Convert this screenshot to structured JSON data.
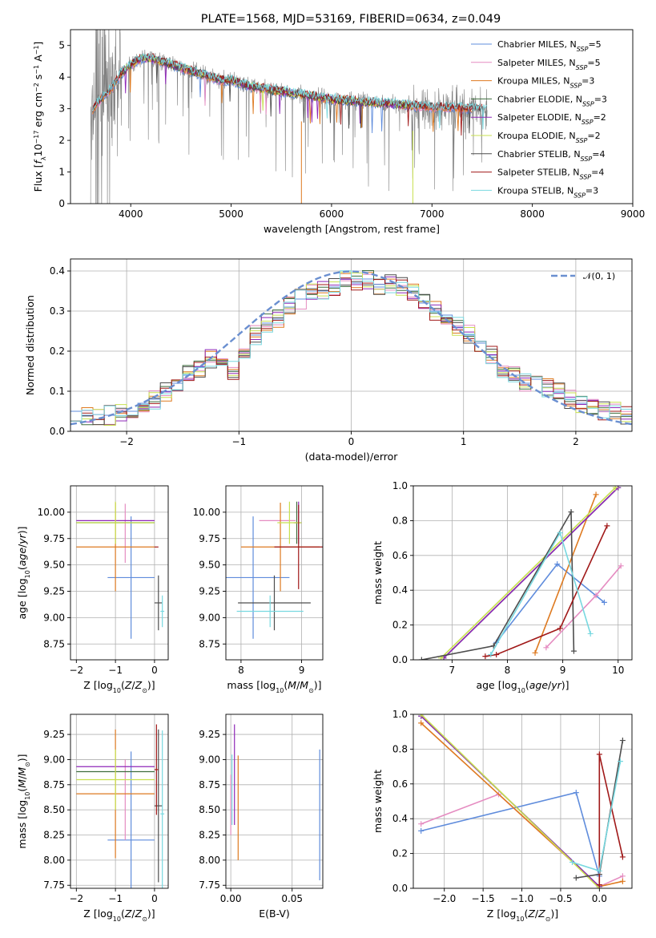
{
  "title": "PLATE=1568, MJD=53169, FIBERID=0634, z=0.049",
  "colors": {
    "Chabrier MILES": "#5f8cdc",
    "Salpeter MILES": "#e58cc1",
    "Kroupa MILES": "#de7a20",
    "Chabrier ELODIE": "#3f6e3f",
    "Salpeter ELODIE": "#8f28b8",
    "Kroupa ELODIE": "#c8e050",
    "Chabrier STELIB": "#4d4d4d",
    "Salpeter STELIB": "#a01818",
    "Kroupa STELIB": "#78d8e0",
    "data": "#808080",
    "gaussian": "#6a8fd0",
    "grid": "#b0b0b0"
  },
  "chart_data": [
    {
      "id": "spectrum",
      "type": "line",
      "xlabel": "wavelength [Angstrom, rest frame]",
      "ylabel": "Flux [f_λ 10^-17 erg cm^-2 s^-1 A^-1]",
      "xlim": [
        3400,
        9000
      ],
      "ylim": [
        0,
        5.5
      ],
      "xticks": [
        4000,
        5000,
        6000,
        7000,
        8000,
        9000
      ],
      "yticks": [
        0,
        1,
        2,
        3,
        4,
        5
      ],
      "grid": false,
      "legend_position": "upper right",
      "continuum": {
        "x": [
          3600,
          3700,
          3800,
          3900,
          4000,
          4100,
          4200,
          4300,
          4500,
          4700,
          4900,
          5000,
          5200,
          5400,
          5600,
          5800,
          6000,
          6200,
          6400,
          6600,
          6800,
          7000,
          7200,
          7400,
          7550
        ],
        "y": [
          2.9,
          3.3,
          3.6,
          4.1,
          4.4,
          4.6,
          4.6,
          4.5,
          4.3,
          4.1,
          3.9,
          3.9,
          3.7,
          3.6,
          3.5,
          3.4,
          3.3,
          3.25,
          3.2,
          3.15,
          3.1,
          3.05,
          3.05,
          3.0,
          3.0
        ]
      },
      "series": [
        {
          "name": "Chabrier MILES",
          "legend": "Chabrier MILES, N_SSP=5"
        },
        {
          "name": "Salpeter MILES",
          "legend": "Salpeter MILES, N_SSP=5"
        },
        {
          "name": "Kroupa MILES",
          "legend": "Kroupa MILES, N_SSP=3"
        },
        {
          "name": "Chabrier ELODIE",
          "legend": "Chabrier ELODIE, N_SSP=3"
        },
        {
          "name": "Salpeter ELODIE",
          "legend": "Salpeter ELODIE, N_SSP=2"
        },
        {
          "name": "Kroupa ELODIE",
          "legend": "Kroupa ELODIE, N_SSP=2"
        },
        {
          "name": "Chabrier STELIB",
          "legend": "Chabrier STELIB, N_SSP=4"
        },
        {
          "name": "Salpeter STELIB",
          "legend": "Salpeter STELIB, N_SSP=4"
        },
        {
          "name": "Kroupa STELIB",
          "legend": "Kroupa STELIB, N_SSP=3"
        }
      ]
    },
    {
      "id": "residuals",
      "type": "histogram",
      "xlabel": "(data-model)/error",
      "ylabel": "Normed distribution",
      "xlim": [
        -2.5,
        2.5
      ],
      "ylim": [
        0,
        0.43
      ],
      "xticks": [
        -2,
        -1,
        0,
        1,
        2
      ],
      "yticks": [
        0.0,
        0.1,
        0.2,
        0.3,
        0.4
      ],
      "grid": true,
      "legend": "𝒩(0, 1)",
      "legend_position": "upper right",
      "bin_width": 0.1,
      "series_name": "Chabrier MILES",
      "bins_left": [
        -2.5,
        -2.4,
        -2.3,
        -2.2,
        -2.1,
        -2.0,
        -1.9,
        -1.8,
        -1.7,
        -1.6,
        -1.5,
        -1.4,
        -1.3,
        -1.2,
        -1.1,
        -1.0,
        -0.9,
        -0.8,
        -0.7,
        -0.6,
        -0.5,
        -0.4,
        -0.3,
        -0.2,
        -0.1,
        0.0,
        0.1,
        0.2,
        0.3,
        0.4,
        0.5,
        0.6,
        0.7,
        0.8,
        0.9,
        1.0,
        1.1,
        1.2,
        1.3,
        1.4,
        1.5,
        1.6,
        1.7,
        1.8,
        1.9,
        2.0,
        2.1,
        2.2,
        2.3,
        2.4
      ],
      "values": [
        0.05,
        0.04,
        0.03,
        0.04,
        0.05,
        0.05,
        0.07,
        0.08,
        0.1,
        0.12,
        0.14,
        0.16,
        0.18,
        0.17,
        0.15,
        0.2,
        0.24,
        0.27,
        0.28,
        0.31,
        0.33,
        0.35,
        0.35,
        0.36,
        0.38,
        0.37,
        0.38,
        0.36,
        0.37,
        0.36,
        0.35,
        0.32,
        0.3,
        0.29,
        0.26,
        0.24,
        0.22,
        0.19,
        0.15,
        0.14,
        0.12,
        0.13,
        0.11,
        0.1,
        0.08,
        0.07,
        0.06,
        0.05,
        0.05,
        0.04
      ]
    },
    {
      "id": "age-vs-Z",
      "type": "errorbar",
      "xlabel": "Z [log10(Z/Z⊙)]",
      "ylabel": "age [log10(age/yr)]",
      "xlim": [
        -2.15,
        0.35
      ],
      "ylim": [
        8.6,
        10.25
      ],
      "xticks": [
        -2,
        -1,
        0
      ],
      "yticks": [
        8.75,
        9.0,
        9.25,
        9.5,
        9.75,
        10.0
      ],
      "grid": true,
      "points": [
        {
          "series": "Chabrier MILES",
          "x": -0.6,
          "xerr": 0.6,
          "y": 9.38,
          "yerr": 0.58
        },
        {
          "series": "Salpeter MILES",
          "x": -0.75,
          "xerr": 0.0,
          "y": 9.8,
          "yerr": 0.28
        },
        {
          "series": "Kroupa MILES",
          "x": -1.0,
          "xerr": 1.0,
          "y": 9.67,
          "yerr": 0.42
        },
        {
          "series": "Chabrier ELODIE",
          "x": -1.0,
          "xerr": 1.0,
          "y": 9.9,
          "yerr": 0.0
        },
        {
          "series": "Salpeter ELODIE",
          "x": -1.0,
          "xerr": 1.0,
          "y": 9.92,
          "yerr": 0.0
        },
        {
          "series": "Kroupa ELODIE",
          "x": -1.0,
          "xerr": 1.0,
          "y": 9.9,
          "yerr": 0.2
        },
        {
          "series": "Chabrier STELIB",
          "x": 0.1,
          "xerr": 0.1,
          "y": 9.14,
          "yerr": 0.26
        },
        {
          "series": "Salpeter STELIB",
          "x": 0.05,
          "xerr": 0.05,
          "y": 9.67,
          "yerr": 0.0
        },
        {
          "series": "Kroupa STELIB",
          "x": 0.2,
          "xerr": 0.05,
          "y": 9.06,
          "yerr": 0.15
        }
      ]
    },
    {
      "id": "age-vs-mass",
      "type": "errorbar",
      "xlabel": "mass [log10(M/M⊙)]",
      "ylabel": "",
      "xlim": [
        7.75,
        9.35
      ],
      "ylim": [
        8.6,
        10.25
      ],
      "xticks": [
        8,
        9
      ],
      "yticks": [
        8.75,
        9.0,
        9.25,
        9.5,
        9.75,
        10.0
      ],
      "grid": true,
      "points": [
        {
          "series": "Chabrier MILES",
          "x": 8.2,
          "xerr": 0.6,
          "y": 9.38,
          "yerr": 0.58
        },
        {
          "series": "Salpeter MILES",
          "x": 8.6,
          "xerr": 0.3,
          "y": 9.92,
          "yerr": 0.0
        },
        {
          "series": "Kroupa MILES",
          "x": 8.65,
          "xerr": 0.65,
          "y": 9.67,
          "yerr": 0.42
        },
        {
          "series": "Chabrier ELODIE",
          "x": 8.92,
          "xerr": 0.05,
          "y": 9.9,
          "yerr": 0.2
        },
        {
          "series": "Salpeter ELODIE",
          "x": 8.95,
          "xerr": 0.05,
          "y": 9.9,
          "yerr": 0.2
        },
        {
          "series": "Kroupa ELODIE",
          "x": 8.8,
          "xerr": 0.2,
          "y": 9.9,
          "yerr": 0.2
        },
        {
          "series": "Chabrier STELIB",
          "x": 8.55,
          "xerr": 0.6,
          "y": 9.14,
          "yerr": 0.26
        },
        {
          "series": "Salpeter STELIB",
          "x": 8.95,
          "xerr": 0.4,
          "y": 9.67,
          "yerr": 0.4
        },
        {
          "series": "Kroupa STELIB",
          "x": 8.48,
          "xerr": 0.55,
          "y": 9.06,
          "yerr": 0.15
        }
      ]
    },
    {
      "id": "weight-vs-age",
      "type": "line",
      "xlabel": "age [log10(age/yr)]",
      "ylabel": "mass weight",
      "xlim": [
        6.3,
        10.25
      ],
      "ylim": [
        0,
        1.0
      ],
      "xticks": [
        7,
        8,
        9,
        10
      ],
      "yticks": [
        0.0,
        0.2,
        0.4,
        0.6,
        0.8,
        1.0
      ],
      "grid": true,
      "series": [
        {
          "name": "Chabrier MILES",
          "x": [
            7.8,
            8.9,
            9.75
          ],
          "y": [
            0.1,
            0.55,
            0.33
          ]
        },
        {
          "name": "Salpeter MILES",
          "x": [
            8.7,
            9.6,
            10.05
          ],
          "y": [
            0.07,
            0.37,
            0.54
          ]
        },
        {
          "name": "Kroupa MILES",
          "x": [
            8.5,
            9.6
          ],
          "y": [
            0.04,
            0.95
          ]
        },
        {
          "name": "Chabrier ELODIE",
          "x": [
            6.85,
            10.0
          ],
          "y": [
            0.01,
            0.99
          ]
        },
        {
          "name": "Salpeter ELODIE",
          "x": [
            6.85,
            10.0
          ],
          "y": [
            0.01,
            0.99
          ]
        },
        {
          "name": "Kroupa ELODIE",
          "x": [
            6.8,
            9.95
          ],
          "y": [
            0.01,
            0.99
          ]
        },
        {
          "name": "Chabrier STELIB",
          "x": [
            6.45,
            7.75,
            9.15,
            9.2
          ],
          "y": [
            0.0,
            0.08,
            0.85,
            0.05
          ]
        },
        {
          "name": "Salpeter STELIB",
          "x": [
            7.6,
            7.8,
            8.95,
            9.8
          ],
          "y": [
            0.02,
            0.03,
            0.18,
            0.77
          ]
        },
        {
          "name": "Kroupa STELIB",
          "x": [
            7.7,
            8.95,
            9.5
          ],
          "y": [
            0.03,
            0.73,
            0.15
          ]
        }
      ]
    },
    {
      "id": "mass-vs-Z",
      "type": "errorbar",
      "xlabel": "Z [log10(Z/Z⊙)]",
      "ylabel": "mass [log10(M/M⊙)]",
      "xlim": [
        -2.15,
        0.35
      ],
      "ylim": [
        7.72,
        9.45
      ],
      "xticks": [
        -2,
        -1,
        0
      ],
      "yticks": [
        7.75,
        8.0,
        8.25,
        8.5,
        8.75,
        9.0,
        9.25
      ],
      "grid": true,
      "points": [
        {
          "series": "Chabrier MILES",
          "x": -0.6,
          "xerr": 0.6,
          "y": 8.2,
          "yerr": 0.88
        },
        {
          "series": "Salpeter MILES",
          "x": -0.75,
          "xerr": 0.0,
          "y": 8.6,
          "yerr": 0.4
        },
        {
          "series": "Kroupa MILES",
          "x": -1.0,
          "xerr": 1.0,
          "y": 8.66,
          "yerr": 0.64
        },
        {
          "series": "Chabrier ELODIE",
          "x": -1.0,
          "xerr": 1.0,
          "y": 8.88,
          "yerr": 0.0
        },
        {
          "series": "Salpeter ELODIE",
          "x": -1.0,
          "xerr": 1.0,
          "y": 8.93,
          "yerr": 0.0
        },
        {
          "series": "Kroupa ELODIE",
          "x": -1.0,
          "xerr": 1.0,
          "y": 8.8,
          "yerr": 0.3
        },
        {
          "series": "Chabrier STELIB",
          "x": 0.1,
          "xerr": 0.1,
          "y": 8.54,
          "yerr": 0.76
        },
        {
          "series": "Salpeter STELIB",
          "x": 0.05,
          "xerr": 0.05,
          "y": 8.9,
          "yerr": 0.45
        },
        {
          "series": "Kroupa STELIB",
          "x": 0.2,
          "xerr": 0.05,
          "y": 8.46,
          "yerr": 0.83
        }
      ]
    },
    {
      "id": "mass-vs-EBV",
      "type": "errorbar",
      "xlabel": "E(B-V)",
      "ylabel": "",
      "xlim": [
        -0.004,
        0.075
      ],
      "ylim": [
        7.72,
        9.45
      ],
      "xticks": [
        0.0,
        0.05
      ],
      "yticks": [
        7.75,
        8.0,
        8.25,
        8.5,
        8.75,
        9.0,
        9.25
      ],
      "grid": true,
      "points": [
        {
          "series": "Chabrier MILES",
          "x": 0.0725,
          "y": 8.45,
          "yerr": 0.65
        },
        {
          "series": "Salpeter MILES",
          "x": 0.0,
          "y": 8.55,
          "yerr": 0.3
        },
        {
          "series": "Kroupa MILES",
          "x": 0.006,
          "y": 8.52,
          "yerr": 0.52
        },
        {
          "series": "Salpeter ELODIE",
          "x": 0.003,
          "y": 8.85,
          "yerr": 0.5
        },
        {
          "series": "Kroupa STELIB",
          "x": 0.001,
          "y": 8.7,
          "yerr": 0.35
        }
      ]
    },
    {
      "id": "weight-vs-Z",
      "type": "line",
      "xlabel": "Z [log10(Z/Z⊙)]",
      "ylabel": "mass weight",
      "xlim": [
        -2.4,
        0.42
      ],
      "ylim": [
        0,
        1.0
      ],
      "xticks": [
        -2.0,
        -1.5,
        -1.0,
        -0.5,
        0.0
      ],
      "yticks": [
        0.0,
        0.2,
        0.4,
        0.6,
        0.8,
        1.0
      ],
      "grid": true,
      "series": [
        {
          "name": "Chabrier MILES",
          "x": [
            -2.3,
            -0.3,
            0.0
          ],
          "y": [
            0.33,
            0.55,
            0.07
          ]
        },
        {
          "name": "Salpeter MILES",
          "x": [
            -2.3,
            -1.3,
            0.0,
            0.3
          ],
          "y": [
            0.37,
            0.54,
            0.01,
            0.07
          ]
        },
        {
          "name": "Kroupa MILES",
          "x": [
            -2.3,
            0.0,
            0.3
          ],
          "y": [
            0.95,
            0.01,
            0.04
          ]
        },
        {
          "name": "Chabrier ELODIE",
          "x": [
            -2.3,
            0.0
          ],
          "y": [
            0.99,
            0.01
          ]
        },
        {
          "name": "Salpeter ELODIE",
          "x": [
            -2.3,
            0.0
          ],
          "y": [
            0.99,
            0.01
          ]
        },
        {
          "name": "Kroupa ELODIE",
          "x": [
            -2.3,
            0.0
          ],
          "y": [
            1.0,
            0.0
          ]
        },
        {
          "name": "Chabrier STELIB",
          "x": [
            -0.3,
            0.0,
            0.3
          ],
          "y": [
            0.06,
            0.08,
            0.85
          ]
        },
        {
          "name": "Salpeter STELIB",
          "x": [
            0.0,
            0.0,
            0.3
          ],
          "y": [
            0.02,
            0.77,
            0.18
          ]
        },
        {
          "name": "Kroupa STELIB",
          "x": [
            -0.35,
            0.0,
            0.27
          ],
          "y": [
            0.15,
            0.1,
            0.73
          ]
        }
      ]
    }
  ]
}
